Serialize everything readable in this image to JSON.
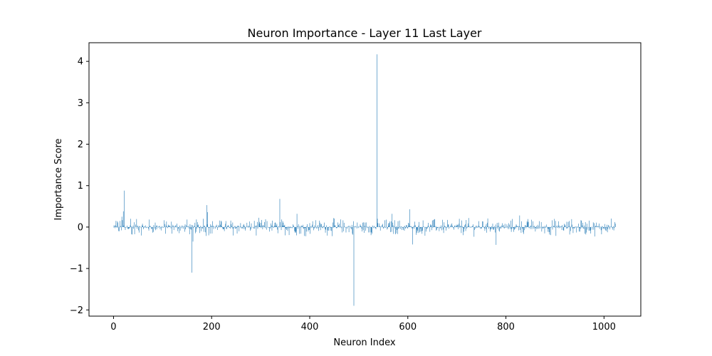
{
  "chart_data": {
    "type": "bar",
    "title": "Neuron Importance - Layer 11 Last Layer",
    "xlabel": "Neuron Index",
    "ylabel": "Importance Score",
    "xlim": [
      -50,
      1075
    ],
    "ylim": [
      -2.15,
      4.45
    ],
    "xticks": [
      0,
      200,
      400,
      600,
      800,
      1000
    ],
    "yticks": [
      -2,
      -1,
      0,
      1,
      2,
      3,
      4
    ],
    "ytick_labels": [
      "−2",
      "−1",
      "0",
      "1",
      "2",
      "3",
      "4"
    ],
    "grid": false,
    "legend": "none",
    "color": "#1f77b4",
    "n_neurons": 1024,
    "noise_amplitude": 0.2,
    "notable_bars": [
      {
        "x": 5,
        "y": 0.15
      },
      {
        "x": 8,
        "y": 0.14
      },
      {
        "x": 12,
        "y": -0.1
      },
      {
        "x": 17,
        "y": 0.25
      },
      {
        "x": 20,
        "y": 0.38
      },
      {
        "x": 22,
        "y": 0.88
      },
      {
        "x": 24,
        "y": -0.07
      },
      {
        "x": 35,
        "y": 0.2
      },
      {
        "x": 38,
        "y": -0.18
      },
      {
        "x": 160,
        "y": -1.1
      },
      {
        "x": 162,
        "y": -0.35
      },
      {
        "x": 183,
        "y": 0.2
      },
      {
        "x": 190,
        "y": 0.53
      },
      {
        "x": 192,
        "y": 0.36
      },
      {
        "x": 339,
        "y": 0.68
      },
      {
        "x": 374,
        "y": 0.32
      },
      {
        "x": 490,
        "y": -1.9
      },
      {
        "x": 537,
        "y": 4.17
      },
      {
        "x": 568,
        "y": 0.32
      },
      {
        "x": 604,
        "y": 0.43
      },
      {
        "x": 610,
        "y": -0.42
      },
      {
        "x": 780,
        "y": -0.43
      },
      {
        "x": 828,
        "y": 0.28
      }
    ]
  }
}
